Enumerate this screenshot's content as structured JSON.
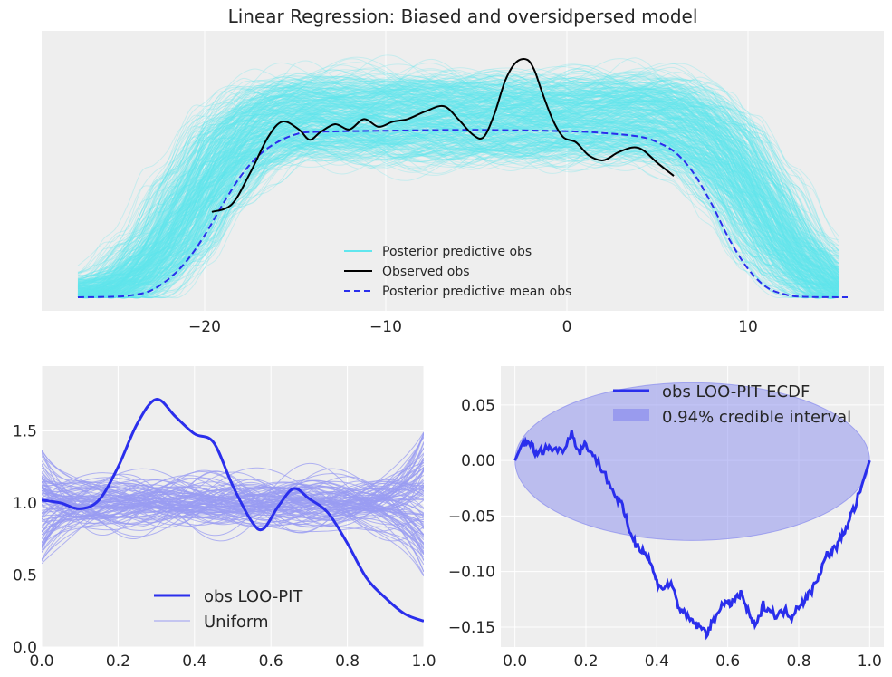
{
  "chart_data": [
    {
      "type": "line",
      "title": "Linear Regression: Biased and oversidpersed model",
      "xlabel": "",
      "ylabel": "",
      "xlim": [
        -29,
        17.5
      ],
      "xticks": [
        -20,
        -10,
        0,
        10
      ],
      "xtick_labels": [
        "−20",
        "−10",
        "0",
        "10"
      ],
      "yticks": [],
      "grid": true,
      "legend": "lower-center",
      "legend_entries": [
        "Posterior predictive obs",
        "Observed obs",
        "Posterior predictive mean obs"
      ],
      "series": [
        {
          "name": "Posterior predictive obs",
          "color": "#60e6ee",
          "description_count": 500,
          "envelope_x": [
            -27,
            -25,
            -23,
            -21,
            -19,
            -17,
            -15,
            -5,
            5,
            7,
            9,
            11,
            13,
            15.5
          ],
          "envelope_lower": [
            0.0,
            0.005,
            0.04,
            0.15,
            0.36,
            0.5,
            0.56,
            0.56,
            0.56,
            0.5,
            0.36,
            0.15,
            0.04,
            0.0
          ],
          "envelope_upper": [
            0.01,
            0.06,
            0.22,
            0.48,
            0.7,
            0.8,
            0.83,
            0.83,
            0.83,
            0.8,
            0.7,
            0.48,
            0.22,
            0.01
          ]
        },
        {
          "name": "Observed obs",
          "color": "#000000",
          "x": [
            -19.6,
            -18.5,
            -17.5,
            -16.5,
            -15.7,
            -14.8,
            -14.2,
            -13.6,
            -12.8,
            -12.0,
            -11.2,
            -10.4,
            -9.6,
            -8.8,
            -7.8,
            -6.8,
            -6.0,
            -5.2,
            -4.6,
            -4.0,
            -3.4,
            -2.8,
            -2.2,
            -1.8,
            -1.4,
            -0.8,
            -0.2,
            0.5,
            1.2,
            2.0,
            2.8,
            3.6,
            4.2,
            5.0,
            5.9
          ],
          "y": [
            0.33,
            0.36,
            0.48,
            0.62,
            0.68,
            0.65,
            0.61,
            0.64,
            0.67,
            0.65,
            0.69,
            0.66,
            0.68,
            0.69,
            0.72,
            0.74,
            0.69,
            0.63,
            0.62,
            0.71,
            0.84,
            0.91,
            0.92,
            0.88,
            0.8,
            0.69,
            0.62,
            0.6,
            0.55,
            0.53,
            0.56,
            0.58,
            0.57,
            0.52,
            0.47
          ]
        },
        {
          "name": "Posterior predictive mean obs",
          "color": "#2a2eec",
          "x": [
            -27,
            -25,
            -24,
            -23,
            -22,
            -21,
            -20,
            -19,
            -18,
            -17,
            -16,
            -15,
            -14,
            -10,
            -5,
            0,
            2,
            4,
            5,
            6,
            7,
            8,
            9,
            10,
            11,
            12,
            13,
            15.5
          ],
          "y": [
            0.0,
            0.002,
            0.008,
            0.025,
            0.07,
            0.14,
            0.24,
            0.36,
            0.47,
            0.55,
            0.6,
            0.63,
            0.64,
            0.645,
            0.648,
            0.643,
            0.636,
            0.622,
            0.6,
            0.56,
            0.48,
            0.36,
            0.22,
            0.11,
            0.04,
            0.012,
            0.002,
            0.0
          ]
        }
      ]
    },
    {
      "type": "line",
      "title": "",
      "xlabel": "",
      "ylabel": "",
      "xlim": [
        0,
        1
      ],
      "ylim": [
        0,
        1.95
      ],
      "xticks": [
        0.0,
        0.2,
        0.4,
        0.6,
        0.8,
        1.0
      ],
      "xtick_labels": [
        "0.0",
        "0.2",
        "0.4",
        "0.6",
        "0.8",
        "1.0"
      ],
      "yticks": [
        0.0,
        0.5,
        1.0,
        1.5
      ],
      "ytick_labels": [
        "0.0",
        "0.5",
        "1.0",
        "1.5"
      ],
      "grid": true,
      "legend": "lower-center",
      "legend_entries": [
        "obs LOO-PIT",
        "Uniform"
      ],
      "series": [
        {
          "name": "obs LOO-PIT",
          "color": "#2a2eec",
          "x": [
            0.0,
            0.05,
            0.1,
            0.15,
            0.2,
            0.25,
            0.3,
            0.35,
            0.4,
            0.45,
            0.5,
            0.55,
            0.58,
            0.62,
            0.66,
            0.7,
            0.75,
            0.8,
            0.85,
            0.9,
            0.95,
            1.0
          ],
          "y": [
            1.02,
            1.0,
            0.96,
            1.02,
            1.25,
            1.55,
            1.72,
            1.6,
            1.48,
            1.42,
            1.12,
            0.87,
            0.82,
            0.98,
            1.1,
            1.03,
            0.93,
            0.72,
            0.48,
            0.34,
            0.23,
            0.18
          ]
        },
        {
          "name": "Uniform",
          "color": "#9a9cf2",
          "description_count": 100,
          "band_center": 1.0,
          "band_spread": 0.25
        }
      ]
    },
    {
      "type": "line",
      "title": "",
      "xlabel": "",
      "ylabel": "",
      "xlim": [
        -0.04,
        1.04
      ],
      "ylim": [
        -0.168,
        0.085
      ],
      "xticks": [
        0.0,
        0.2,
        0.4,
        0.6,
        0.8,
        1.0
      ],
      "xtick_labels": [
        "0.0",
        "0.2",
        "0.4",
        "0.6",
        "0.8",
        "1.0"
      ],
      "yticks": [
        0.05,
        0.0,
        -0.05,
        -0.1,
        -0.15
      ],
      "ytick_labels": [
        "0.05",
        "0.00",
        "−0.05",
        "−0.10",
        "−0.15"
      ],
      "grid": true,
      "legend": "top-right",
      "legend_entries": [
        "obs LOO-PIT ECDF",
        "0.94% credible interval"
      ],
      "series": [
        {
          "name": "obs LOO-PIT ECDF",
          "color": "#2a2eec",
          "x": [
            0.0,
            0.02,
            0.04,
            0.06,
            0.08,
            0.1,
            0.13,
            0.16,
            0.18,
            0.2,
            0.22,
            0.25,
            0.28,
            0.3,
            0.32,
            0.34,
            0.36,
            0.38,
            0.4,
            0.42,
            0.44,
            0.46,
            0.48,
            0.5,
            0.52,
            0.54,
            0.56,
            0.58,
            0.6,
            0.62,
            0.64,
            0.66,
            0.68,
            0.7,
            0.72,
            0.74,
            0.76,
            0.78,
            0.8,
            0.82,
            0.84,
            0.86,
            0.88,
            0.9,
            0.92,
            0.94,
            0.96,
            0.98,
            1.0
          ],
          "y": [
            0.0,
            0.015,
            0.018,
            0.005,
            0.01,
            0.012,
            0.008,
            0.025,
            0.008,
            0.015,
            0.005,
            -0.01,
            -0.03,
            -0.04,
            -0.06,
            -0.075,
            -0.08,
            -0.09,
            -0.11,
            -0.115,
            -0.11,
            -0.13,
            -0.14,
            -0.145,
            -0.15,
            -0.155,
            -0.145,
            -0.13,
            -0.13,
            -0.125,
            -0.12,
            -0.14,
            -0.15,
            -0.13,
            -0.135,
            -0.14,
            -0.135,
            -0.14,
            -0.13,
            -0.125,
            -0.115,
            -0.1,
            -0.085,
            -0.08,
            -0.07,
            -0.055,
            -0.04,
            -0.02,
            0.0
          ]
        },
        {
          "name": "0.94% credible interval",
          "color": "#7d80ee",
          "shape": "ellipse",
          "center": [
            0.5,
            0.0
          ],
          "x_radius": 0.5,
          "y_radius_upper": 0.07,
          "y_radius_lower": 0.072
        }
      ]
    }
  ]
}
